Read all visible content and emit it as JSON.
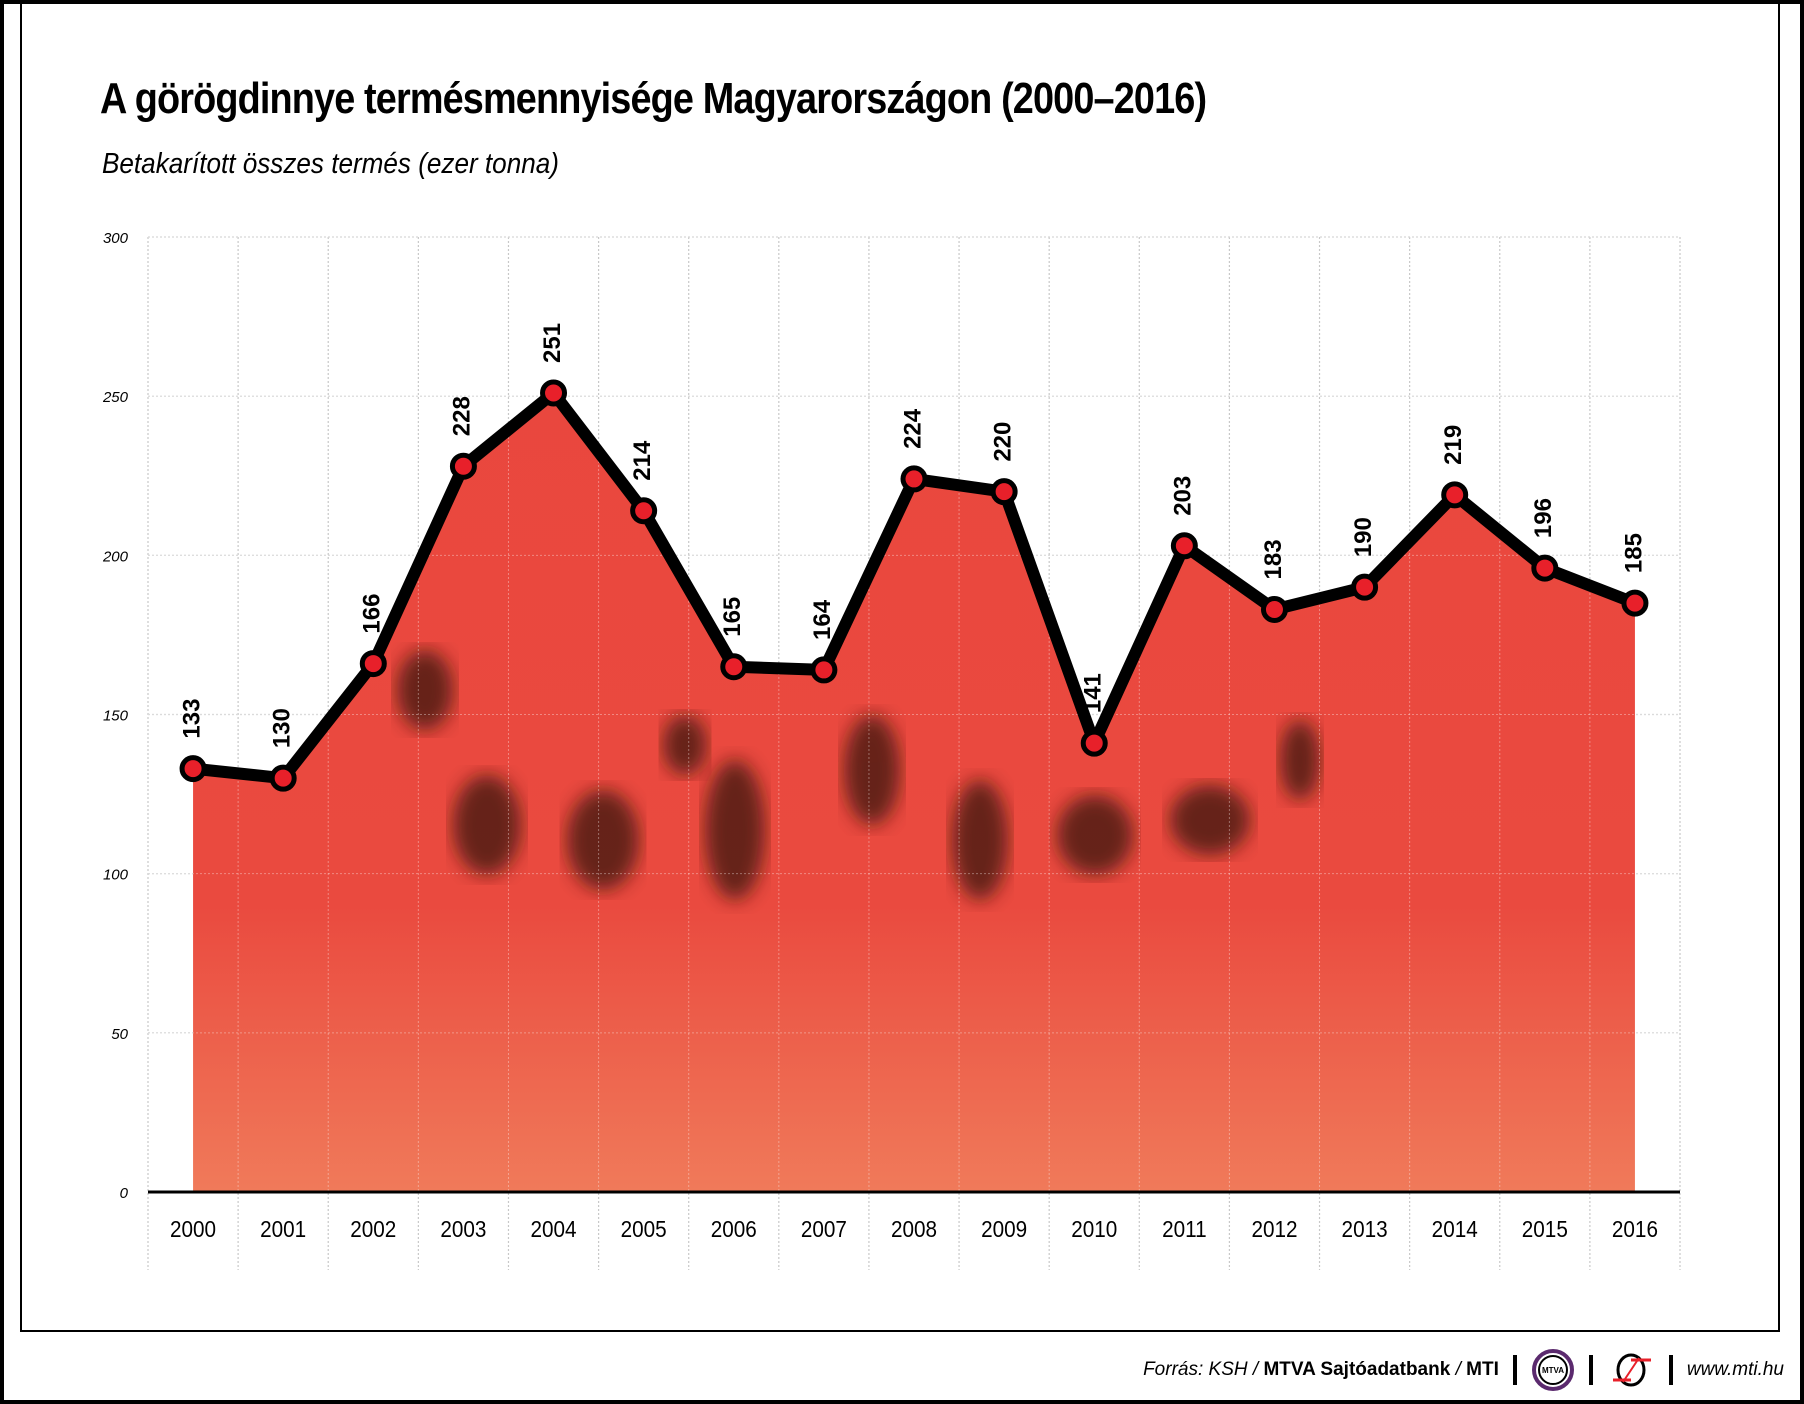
{
  "title": "A görögdinnye termésmennyisége Magyarországon (2000–2016)",
  "subtitle": "Betakarított összes termés (ezer tonna)",
  "chart_data": {
    "type": "area",
    "title": "A görögdinnye termésmennyisége Magyarországon (2000–2016)",
    "subtitle": "Betakarított összes termés (ezer tonna)",
    "categories": [
      "2000",
      "2001",
      "2002",
      "2003",
      "2004",
      "2005",
      "2006",
      "2007",
      "2008",
      "2009",
      "2010",
      "2011",
      "2012",
      "2013",
      "2014",
      "2015",
      "2016"
    ],
    "values": [
      133,
      130,
      166,
      228,
      251,
      214,
      165,
      164,
      224,
      220,
      141,
      203,
      183,
      190,
      219,
      196,
      185
    ],
    "ylim": [
      0,
      300
    ],
    "yticks": [
      "0",
      "50",
      "100",
      "150",
      "200",
      "250",
      "300"
    ],
    "grid": true,
    "data_labels": true,
    "colors": {
      "line": "#000000",
      "marker": "#e8202a",
      "fill": "#e8463f"
    }
  },
  "footer": {
    "source_prefix": "Forrás: KSH / ",
    "source_bold": "MTVA Sajtóadatbank",
    "source_sep": " / ",
    "source_mti": "MTI",
    "mtva_logo": "MTVA",
    "url": "www.mti.hu"
  }
}
